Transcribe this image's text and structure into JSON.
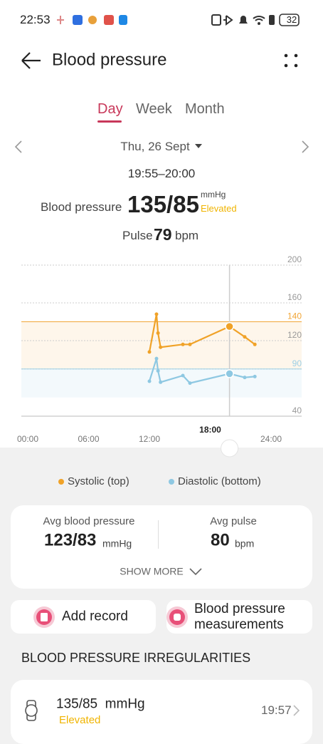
{
  "status_bar": {
    "time": "22:53",
    "battery": "32"
  },
  "header": {
    "title": "Blood pressure"
  },
  "tabs": {
    "items": [
      "Day",
      "Week",
      "Month"
    ],
    "active": 0
  },
  "date": "Thu, 26 Sept",
  "reading": {
    "time_range": "19:55–20:00",
    "label": "Blood pressure",
    "value": "135/85",
    "unit": "mmHg",
    "status": "Elevated",
    "pulse_label": "Pulse",
    "pulse": "79",
    "pulse_unit": "bpm"
  },
  "chart_data": {
    "type": "line",
    "x": [
      12.0,
      12.7,
      12.85,
      13.1,
      15.3,
      16.0,
      19.9,
      21.4,
      22.4
    ],
    "xlim": [
      0,
      24
    ],
    "xticks": [
      {
        "value": 0,
        "label": "00:00"
      },
      {
        "value": 6,
        "label": "06:00"
      },
      {
        "value": 12,
        "label": "12:00"
      },
      {
        "value": 18,
        "label": "18:00"
      },
      {
        "value": 24,
        "label": "24:00"
      }
    ],
    "ylim": [
      40,
      200
    ],
    "yticks": [
      40,
      90,
      120,
      140,
      160,
      200
    ],
    "threshold_lines": [
      {
        "value": 140,
        "color": "#f1a536"
      },
      {
        "value": 90,
        "color": "#9ccfe6"
      }
    ],
    "selected_index": 6,
    "grid": true,
    "series": [
      {
        "name": "Systolic (top)",
        "color": "#f0a228",
        "values": [
          108,
          148,
          128,
          113,
          116,
          116,
          135,
          124,
          116
        ]
      },
      {
        "name": "Diastolic (bottom)",
        "color": "#8ec8e2",
        "values": [
          77,
          101,
          88,
          76,
          83,
          75,
          85,
          81,
          82
        ]
      }
    ]
  },
  "summary": {
    "avg_bp_label": "Avg blood pressure",
    "avg_bp": "123/83",
    "avg_bp_unit": "mmHg",
    "avg_pulse_label": "Avg pulse",
    "avg_pulse": "80",
    "avg_pulse_unit": "bpm",
    "show_more": "SHOW MORE"
  },
  "actions": [
    "Add record",
    "Blood pressure measurements"
  ],
  "section_title": "BLOOD PRESSURE IRREGULARITIES",
  "records": [
    {
      "value": "135/85  mmHg",
      "status": "Elevated",
      "time": "19:57"
    }
  ]
}
